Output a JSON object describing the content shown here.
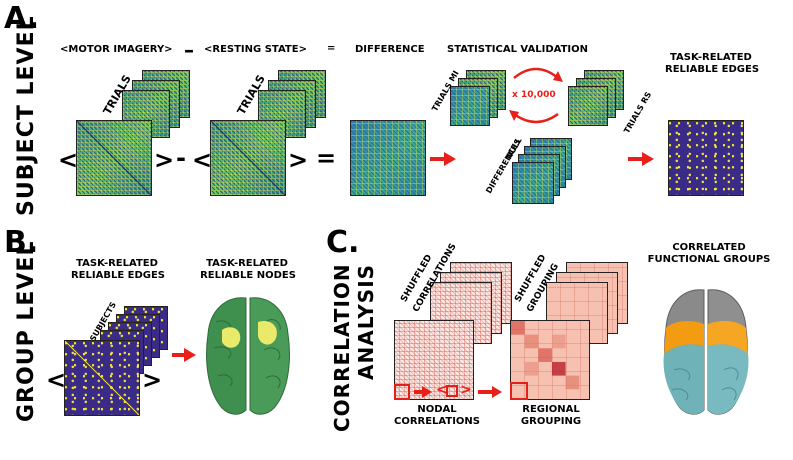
{
  "panel_a": {
    "letter": "A.",
    "side_label": "SUBJECT LEVEL",
    "header_motor": "<MOTOR IMAGERY>",
    "header_minus": "–",
    "header_rest": "<RESTING STATE>",
    "header_equals": "=",
    "header_difference": "DIFFERENCE",
    "header_stat": "STATISTICAL VALIDATION",
    "header_reliable_1": "TASK-RELATED",
    "header_reliable_2": "RELIABLE EDGES",
    "trials_label_motor": "TRIALS",
    "trials_label_rest": "TRIALS",
    "bracket_left": "<",
    "bracket_right": ">",
    "op_minus": "-",
    "op_equals": "=",
    "trials_mi": "TRIALS MI",
    "trials_rs": "TRIALS RS",
    "multiplier": "x 10,000",
    "null_label": "NULL",
    "differences_label": "DIFFERENCES"
  },
  "panel_b": {
    "letter": "B.",
    "side_label": "GROUP LEVEL",
    "edges_1": "TASK-RELATED",
    "edges_2": "RELIABLE EDGES",
    "nodes_1": "TASK-RELATED",
    "nodes_2": "RELIABLE NODES",
    "subjects_label": "SUBJECTS",
    "bracket_left": "<",
    "bracket_right": ">"
  },
  "panel_c": {
    "letter": "C.",
    "side_label_1": "CORRELATION",
    "side_label_2": "ANALYSIS",
    "shuffled_corr_1": "SHUFFLED",
    "shuffled_corr_2": "CORRELATIONS",
    "shuffled_grp_1": "SHUFFLED",
    "shuffled_grp_2": "GROUPING",
    "nodal_1": "NODAL",
    "nodal_2": "CORRELATIONS",
    "regional_1": "REGIONAL",
    "regional_2": "GROUPING",
    "mini_bracket_left": "<",
    "mini_bracket_right": ">",
    "functional_1": "CORRELATED",
    "functional_2": "FUNCTIONAL GROUPS"
  },
  "colors": {
    "arrow_red": "#e8201a",
    "viridis_dark": "#3a2c86",
    "viridis_yellow": "#fde725",
    "brain_green": "#3f8f4e",
    "brain_highlight": "#e9e96a",
    "brain_gray": "#8a8a8a",
    "brain_orange": "#f39c12",
    "brain_teal": "#6fb3b8"
  },
  "icons": {
    "flow_arrow": "right-arrow-icon",
    "cycle_arrow": "curved-arrow-icon",
    "brain": "brain-render"
  }
}
